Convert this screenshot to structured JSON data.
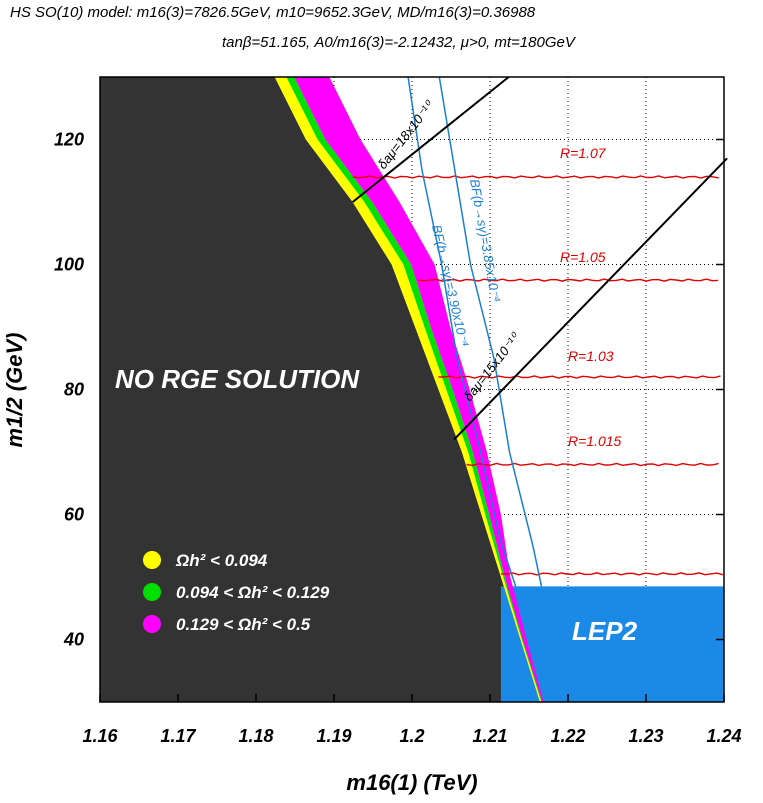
{
  "header": {
    "line1": "HS SO(10) model:  m16(3)=7826.5GeV, m10=9652.3GeV, MD/m16(3)=0.36988",
    "line2": "tanβ=51.165, A0/m16(3)=-2.12432, μ>0, mt=180GeV"
  },
  "chart_data": {
    "type": "contour",
    "title": "HS SO(10) model:  m16(3)=7826.5GeV, m10=9652.3GeV, MD/m16(3)=0.36988 ; tanβ=51.165, A0/m16(3)=-2.12432, μ>0, mt=180GeV",
    "xlabel": "m16(1) (TeV)",
    "ylabel": "m1/2 (GeV)",
    "xlim": [
      1.16,
      1.24
    ],
    "ylim": [
      30,
      130
    ],
    "x_ticks": [
      "1.16",
      "1.17",
      "1.18",
      "1.19",
      "1.2",
      "1.21",
      "1.22",
      "1.23",
      "1.24"
    ],
    "y_ticks": [
      "40",
      "60",
      "80",
      "100",
      "120"
    ],
    "regions": [
      {
        "name": "NO RGE SOLUTION",
        "color": "#333333",
        "boundary": [
          [
            1.1824,
            130
          ],
          [
            1.1864,
            120
          ],
          [
            1.1924,
            110
          ],
          [
            1.1974,
            100
          ],
          [
            1.2004,
            90
          ],
          [
            1.2034,
            80
          ],
          [
            1.2064,
            70
          ],
          [
            1.2089,
            60
          ],
          [
            1.2114,
            50
          ],
          [
            1.2139,
            40
          ],
          [
            1.2164,
            30
          ]
        ]
      },
      {
        "name": "LEP2",
        "color": "#1a8ae6",
        "x_range": [
          1.2114,
          1.24
        ],
        "y_range": [
          30,
          48.5
        ]
      }
    ],
    "bands": [
      {
        "label": "Ωh² < 0.094",
        "color": "#ffff00",
        "inner": [
          [
            1.1824,
            130
          ],
          [
            1.1864,
            120
          ],
          [
            1.1924,
            110
          ],
          [
            1.1974,
            100
          ],
          [
            1.2004,
            90
          ],
          [
            1.2034,
            80
          ],
          [
            1.2064,
            70
          ],
          [
            1.2089,
            60
          ],
          [
            1.2114,
            50
          ],
          [
            1.2139,
            40
          ],
          [
            1.2164,
            30
          ]
        ],
        "outer": [
          [
            1.1839,
            130
          ],
          [
            1.1879,
            120
          ],
          [
            1.1939,
            110
          ],
          [
            1.1989,
            100
          ],
          [
            1.2016,
            90
          ],
          [
            1.2044,
            80
          ],
          [
            1.2072,
            70
          ],
          [
            1.2094,
            60
          ],
          [
            1.2117,
            50
          ],
          [
            1.2141,
            40
          ],
          [
            1.2166,
            30
          ]
        ]
      },
      {
        "label": "0.094 < Ωh² < 0.129",
        "color": "#00e000",
        "outer": [
          [
            1.1849,
            130
          ],
          [
            1.1889,
            120
          ],
          [
            1.1949,
            110
          ],
          [
            1.1999,
            100
          ],
          [
            1.2024,
            90
          ],
          [
            1.2052,
            80
          ],
          [
            1.2078,
            70
          ],
          [
            1.2099,
            60
          ],
          [
            1.2119,
            50
          ],
          [
            1.2142,
            40
          ],
          [
            1.2167,
            30
          ]
        ]
      },
      {
        "label": "0.129 < Ωh² < 0.5",
        "color": "#ff00ff",
        "outer": [
          [
            1.1894,
            130
          ],
          [
            1.1934,
            120
          ],
          [
            1.1984,
            110
          ],
          [
            1.2029,
            100
          ],
          [
            1.2049,
            90
          ],
          [
            1.2074,
            80
          ],
          [
            1.2096,
            70
          ],
          [
            1.2114,
            60
          ],
          [
            1.2126,
            50
          ],
          [
            1.2147,
            40
          ],
          [
            1.2169,
            30
          ]
        ]
      }
    ],
    "lines": [
      {
        "label": "R=1.07",
        "color": "#e00000",
        "y": 114,
        "x_start": 1.1924
      },
      {
        "label": "R=1.05",
        "color": "#e00000",
        "y": 97.5,
        "x_start": 1.2008
      },
      {
        "label": "R=1.03",
        "color": "#e00000",
        "y": 82,
        "x_start": 1.2034
      },
      {
        "label": "R=1.015",
        "color": "#e00000",
        "y": 68,
        "x_start": 1.207
      },
      {
        "label": "",
        "color": "#e00000",
        "y": 50.5,
        "x_start": 1.2114
      },
      {
        "label": "BF(b→sγ)=3.85x10⁻⁴",
        "color": "#1a7fd4",
        "points": [
          [
            1.2035,
            130
          ],
          [
            1.2055,
            115
          ],
          [
            1.2075,
            100
          ],
          [
            1.2105,
            85
          ],
          [
            1.2125,
            70
          ],
          [
            1.2155,
            55
          ],
          [
            1.2166,
            48.5
          ]
        ]
      },
      {
        "label": "BF(b→sγ)=3.90x10⁻⁴",
        "color": "#1a7fd4",
        "points": [
          [
            1.1995,
            130
          ],
          [
            1.2013,
            115
          ],
          [
            1.2038,
            100
          ],
          [
            1.2058,
            85
          ],
          [
            1.2088,
            70
          ],
          [
            1.2113,
            56
          ],
          [
            1.2133,
            48.5
          ]
        ]
      },
      {
        "label": "δaμ=18x10⁻¹⁰",
        "color": "#000000",
        "points": [
          [
            1.1924,
            110
          ],
          [
            1.2124,
            130
          ]
        ]
      },
      {
        "label": "δaμ=15x10⁻¹⁰",
        "color": "#000000",
        "points": [
          [
            1.2054,
            72
          ],
          [
            1.2404,
            117
          ]
        ]
      }
    ]
  },
  "texts": {
    "no_rge": "NO RGE SOLUTION",
    "lep2": "LEP2"
  }
}
